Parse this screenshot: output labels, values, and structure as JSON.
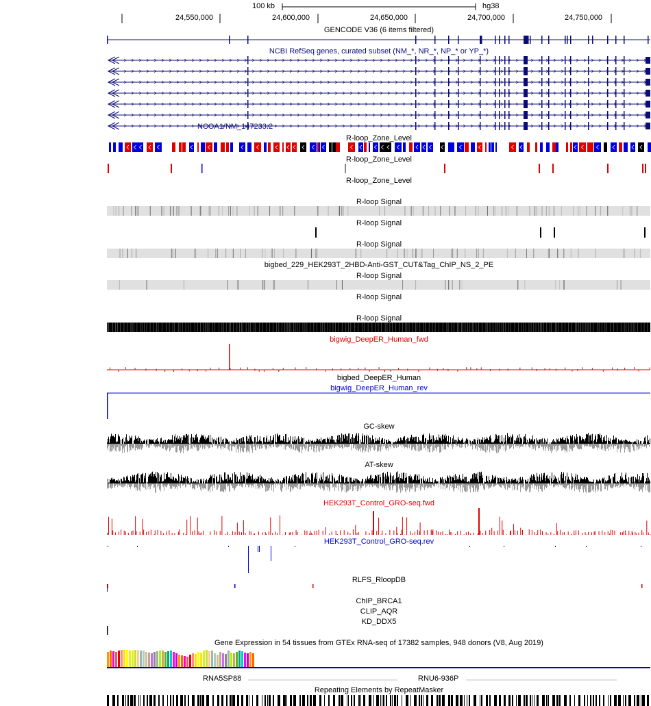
{
  "ruler": {
    "scale_label": "100 kb",
    "assembly": "hg38",
    "ticks": [
      "24,550,000",
      "24,600,000",
      "24,650,000",
      "24,700,000",
      "24,750,000"
    ]
  },
  "tracks": {
    "gencode": "GENCODE V36 (6 items filtered)",
    "refseq": "NCBI RefSeq genes, curated subset (NM_*, NR_*, NP_* or YP_*)",
    "refseq_item": "NCOA1/NM_147233.2",
    "rloop_zone_1": "R-loop_Zone_Level",
    "rloop_zone_2": "R-loop_Zone_Level",
    "rloop_zone_3": "R-loop_Zone_Level",
    "rloop_signal_1": "R-loop Signal",
    "rloop_signal_2": "R-loop Signal",
    "rloop_signal_3": "R-loop Signal",
    "bigbed_cut_tag": "bigbed_229_HEK293T_2HBD-Anti-GST_CUT&Tag_ChIP_NS_2_PE",
    "rloop_signal_4": "R-loop Signal",
    "rloop_signal_5": "R-loop Signal",
    "rloop_signal_6": "R-loop Signal",
    "deeper_fwd": "bigwig_DeepER_Human_fwd",
    "deeper_bigbed": "bigbed_DeepER_Human",
    "deeper_rev": "bigwig_DeepER_Human_rev",
    "gc_skew": "GC-skew",
    "at_skew": "AT-skew",
    "gro_fwd": "HEK293T_Control_GRO-seq.fwd",
    "gro_rev": "HEK293T_Control_GRO-seq.rev",
    "rlfs": "RLFS_RloopDB",
    "chip_brca1": "ChIP_BRCA1",
    "clip_aqr": "CLIP_AQR",
    "kd_ddx5": "KD_DDX5",
    "gtex": "Gene Expression in 54 tissues from GTEx RNA-seq of 17382 samples, 948 donors (V8, Aug 2019)",
    "gene_1": "RNA5SP88",
    "gene_2": "RNU6-936P",
    "repeatmasker": "Repeating Elements by RepeatMasker"
  },
  "colors": {
    "gene_navy": "#0c0c78",
    "red": "#e00000",
    "blue": "#0000e0",
    "grey_bar": "#e0e0e0",
    "gtex": [
      "#ff9900",
      "#ff6600",
      "#ff00bb",
      "#cc6677",
      "#ee0000",
      "#ff8888",
      "#ffdd00",
      "#ffff00",
      "#eeee11",
      "#ddee22",
      "#ccdd33",
      "#ffcc99",
      "#99bbaa",
      "#aacccc",
      "#ddbb99",
      "#bbaa88",
      "#cc66ff",
      "#888888",
      "#aaaaaa",
      "#99ff00",
      "#ccaa55",
      "#66aa33",
      "#00aa77",
      "#00ccdd",
      "#ff00ff",
      "#cc00cc"
    ]
  }
}
